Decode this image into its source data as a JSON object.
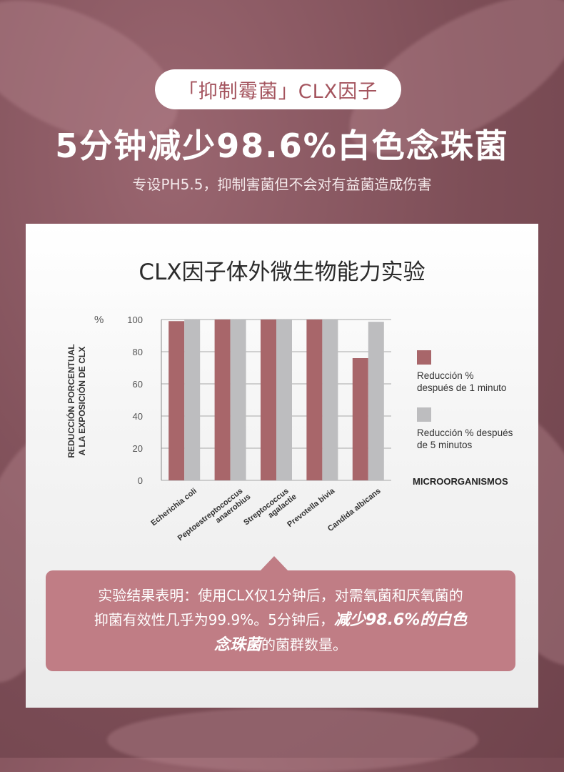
{
  "header": {
    "pill_label": "「抑制霉菌」CLX因子",
    "headline": "5分钟减少98.6%白色念珠菌",
    "subline": "专设PH5.5，抑制害菌但不会对有益菌造成伤害"
  },
  "card": {
    "title": "CLX因子体外微生物能力实验"
  },
  "chart_data": {
    "type": "bar",
    "categories": [
      "Echerichia coli",
      "Peptoestreptococcus anaerobius",
      "Streptococcus agalactie",
      "Prevotella bivia",
      "Candida albicans"
    ],
    "category_lines": [
      [
        "Echerichia coli"
      ],
      [
        "Peptoestreptococcus",
        "anaerobius"
      ],
      [
        "Streptococcus",
        "agalactie"
      ],
      [
        "Prevotella bivia"
      ],
      [
        "Candida albicans"
      ]
    ],
    "series": [
      {
        "name": "Reducción % después de 1 minuto",
        "name_lines": [
          "Reducción %",
          "después de 1 minuto"
        ],
        "color": "#a8666a",
        "values": [
          99,
          100,
          100,
          100,
          76
        ]
      },
      {
        "name": "Reducción % después de 5 minutos",
        "name_lines": [
          "Reducción % después",
          "de 5 minutos"
        ],
        "color": "#bdbdbf",
        "values": [
          100,
          100,
          100,
          100,
          98.6
        ]
      }
    ],
    "ylabel_lines": [
      "REDUCCIÓN PORCENTUAL",
      "A LA EXPOSICIÓN DE CLX"
    ],
    "y_unit": "%",
    "xlabel": "MICROORGANISMOS",
    "yticks": [
      0,
      20,
      40,
      60,
      80,
      100
    ],
    "ylim": [
      0,
      100
    ],
    "grid": true,
    "legend_position": "right"
  },
  "callout": {
    "line1": "实验结果表明：使用CLX仅1分钟后，对需氧菌和厌氧菌的",
    "line2_plain": "抑菌有效性几乎为99.9%。5分钟后，",
    "line2_em": "减少98.6%的白色",
    "line3_em": "念珠菌",
    "line3_plain": "的菌群数量。"
  },
  "colors": {
    "background": "#7d4e57",
    "accent": "#a4545e",
    "callout": "#c07d85"
  }
}
